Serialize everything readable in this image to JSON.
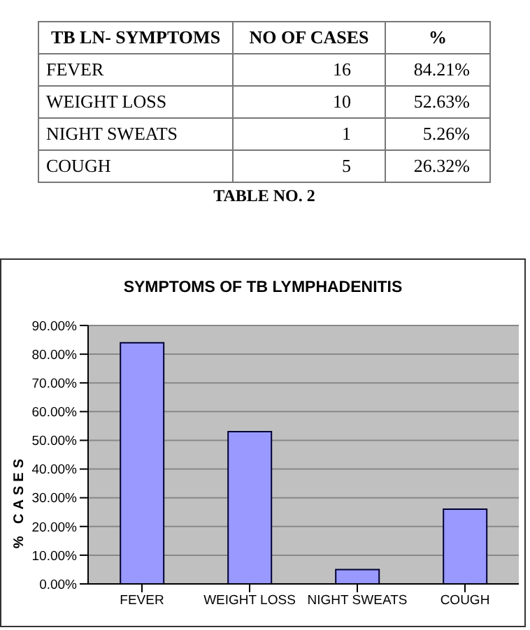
{
  "chart_data": [
    {
      "type": "other",
      "xlabel": "TB LN- SYMPTOMS",
      "categories": [
        "FEVER",
        "WEIGHT LOSS",
        "NIGHT SWEATS",
        "COUGH"
      ],
      "series": [
        {
          "name": "NO OF CASES",
          "values": [
            16,
            10,
            1,
            5
          ]
        },
        {
          "name": "%",
          "values": [
            84.21,
            52.63,
            5.26,
            26.32
          ],
          "value_labels": [
            "84.21%",
            "52.63%",
            "5.26%",
            "26.32%"
          ]
        }
      ],
      "data_labels": true,
      "annotations": [
        "TABLE NO. 2"
      ]
    },
    {
      "type": "bar",
      "title": "SYMPTOMS OF TB LYMPHADENITIS",
      "ylabel": "% CASES",
      "categories": [
        "FEVER",
        "WEIGHT LOSS",
        "NIGHT SWEATS",
        "COUGH"
      ],
      "values": [
        84,
        53,
        5,
        26
      ],
      "color": "#9999ff",
      "ylim": [
        0,
        90
      ],
      "yticks": [
        {
          "value": 0,
          "label": "0.00%"
        },
        {
          "value": 10,
          "label": "10.00%"
        },
        {
          "value": 20,
          "label": "20.00%"
        },
        {
          "value": 30,
          "label": "30.00%"
        },
        {
          "value": 40,
          "label": "40.00%"
        },
        {
          "value": 50,
          "label": "50.00%"
        },
        {
          "value": 60,
          "label": "60.00%"
        },
        {
          "value": 70,
          "label": "70.00%"
        },
        {
          "value": 80,
          "label": "80.00%"
        },
        {
          "value": 90,
          "label": "90.00%"
        }
      ],
      "grid": "y",
      "legend": false
    }
  ]
}
